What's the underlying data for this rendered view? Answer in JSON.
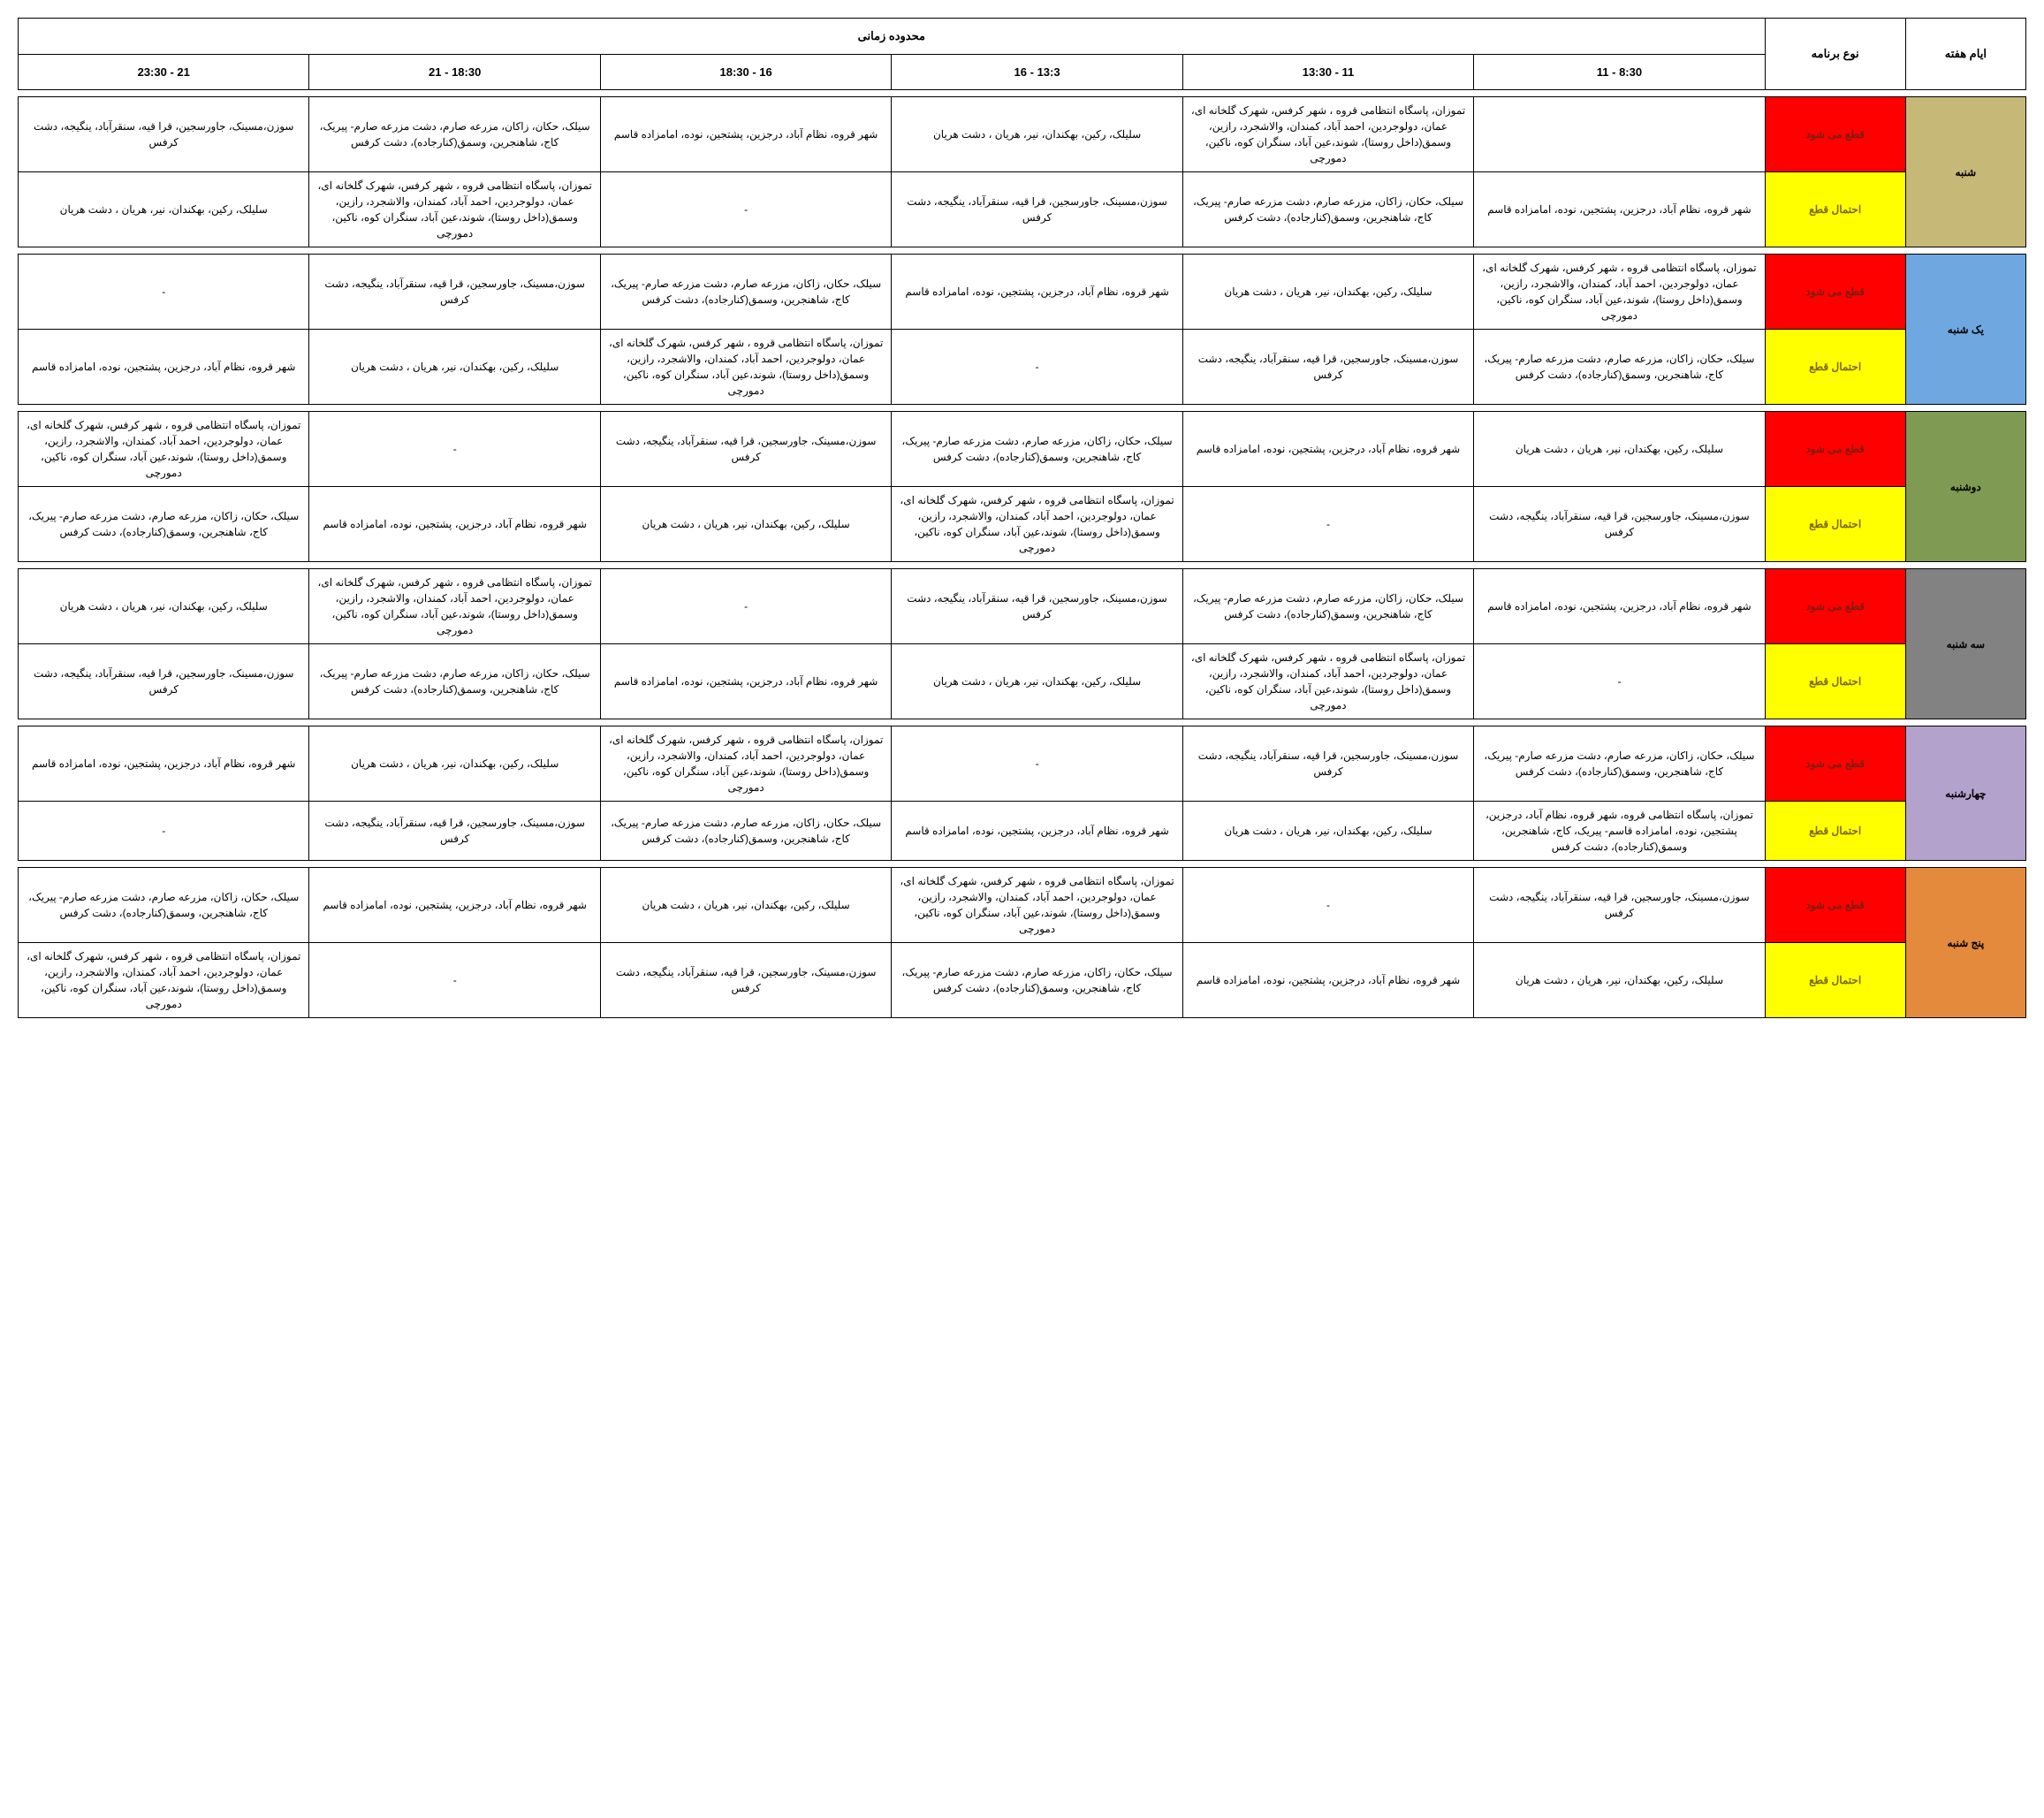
{
  "colors": {
    "header_time_bg": "#e6e6e6",
    "cut_bg": "#ff0000",
    "cut_fg": "#7a1d0e",
    "maybe_bg": "#ffff00",
    "maybe_fg": "#7a6a12",
    "days": {
      "sat": "#c6b877",
      "sun": "#6fa8e0",
      "mon": "#7f9a52",
      "tue": "#828282",
      "wed": "#b3a3cc",
      "thu": "#e48a3c"
    }
  },
  "header": {
    "days_title": "ایام هفته",
    "program_title": "نوع برنامه",
    "time_range": "محدوده زمانی"
  },
  "time_slots": [
    "8:30 - 11",
    "11 - 13:30",
    "13:3 - 16",
    "16 - 18:30",
    "18:30 - 21",
    "21 - 23:30"
  ],
  "program_labels": {
    "cut": "قطع می شود",
    "maybe": "احتمال قطع"
  },
  "areas": {
    "A": "شهر قروه، نظام آباد، درجزین، پشتجین، نوده، امامزاده قاسم",
    "B": "سلیلک، رکین، بهکندان، نیر، هریان ، دشت هریان",
    "C": "تموزان، پاسگاه انتظامی قروه ، شهر کرفس، شهرک گلخانه ای، عمان، دولوجردین، احمد آباد، کمندان، والاشجرد، رازین، وسمق(داخل روستا)، شوند،عین آباد، سنگران کوه، ناکین، دمورچی",
    "D": "سیلک، حکان، زاکان، مزرعه صارم، دشت مزرعه صارم- پیریک، کاج، شاهنجرین، وسمق(کنارجاده)، دشت کرفس",
    "E": "سوزن،مسینک، جاورسجین، قرا قیه، سنقرآباد، ینگیجه، دشت کرفس",
    "F": "تموزان، پاسگاه انتظامی قروه، شهر قروه، نظام آباد، درجزین، پشتجین، نوده، امامزاده قاسم-   پیریک، کاج، شاهنجرین، وسمق(کنارجاده)، دشت کرفس"
  },
  "days": [
    {
      "key": "sat",
      "label": "شنبه",
      "rows": [
        {
          "type": "cut",
          "cells": [
            "",
            "C",
            "B",
            "A",
            "D",
            "E"
          ]
        },
        {
          "type": "maybe",
          "cells": [
            "A",
            "D",
            "E",
            "-",
            "C",
            "B"
          ]
        }
      ]
    },
    {
      "key": "sun",
      "label": "یک شنبه",
      "rows": [
        {
          "type": "cut",
          "cells": [
            "C",
            "B",
            "A",
            "D",
            "E",
            "-"
          ]
        },
        {
          "type": "maybe",
          "cells": [
            "D",
            "E",
            "-",
            "C",
            "B",
            "A"
          ]
        }
      ]
    },
    {
      "key": "mon",
      "label": "دوشنبه",
      "rows": [
        {
          "type": "cut",
          "cells": [
            "B",
            "A",
            "D",
            "E",
            "-",
            "C"
          ]
        },
        {
          "type": "maybe",
          "cells": [
            "E",
            "-",
            "C",
            "B",
            "A",
            "D"
          ]
        }
      ]
    },
    {
      "key": "tue",
      "label": "سه شنبه",
      "rows": [
        {
          "type": "cut",
          "cells": [
            "A",
            "D",
            "E",
            "-",
            "C",
            "B"
          ]
        },
        {
          "type": "maybe",
          "cells": [
            "-",
            "C",
            "B",
            "A",
            "D",
            "E"
          ]
        }
      ]
    },
    {
      "key": "wed",
      "label": "چهارشنبه",
      "rows": [
        {
          "type": "cut",
          "cells": [
            "D",
            "E",
            "-",
            "C",
            "B",
            "A"
          ]
        },
        {
          "type": "maybe",
          "cells": [
            "F",
            "B",
            "A",
            "D",
            "E",
            "-"
          ]
        }
      ]
    },
    {
      "key": "thu",
      "label": "پنج شنبه",
      "rows": [
        {
          "type": "cut",
          "cells": [
            "E",
            "-",
            "C",
            "B",
            "A",
            "D"
          ]
        },
        {
          "type": "maybe",
          "cells": [
            "B",
            "A",
            "D",
            "E",
            "-",
            "C"
          ]
        }
      ]
    }
  ]
}
